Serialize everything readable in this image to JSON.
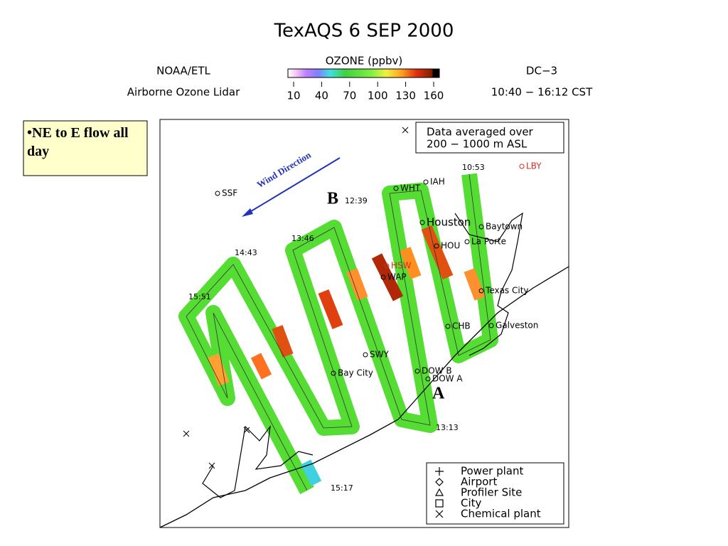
{
  "title": "TexAQS   6 SEP 2000",
  "header": {
    "left": [
      "NOAA/ETL",
      "Airborne Ozone Lidar"
    ],
    "colorbar": {
      "title": "OZONE (ppbv)",
      "ticks": [
        10,
        40,
        70,
        100,
        130,
        160
      ]
    },
    "right": [
      "DC−3",
      "10:40 − 16:12 CST"
    ]
  },
  "note": "•NE to E flow all day",
  "map": {
    "averaging_note": [
      "Data averaged over",
      "200 − 1000 m ASL"
    ],
    "wind_label": "Wind Direction",
    "points": [
      "A",
      "B"
    ],
    "times": [
      "10:53",
      "12:39",
      "13:46",
      "14:43",
      "15:51",
      "13:13",
      "15:17"
    ],
    "places": [
      "SSF",
      "WHT",
      "IAH",
      "LBY",
      "Houston",
      "Baytown",
      "HOU",
      "La Porte",
      "HSW",
      "WAP",
      "Texas City",
      "CHB",
      "Galveston",
      "SWY",
      "Bay City",
      "DOW B",
      "DOW A"
    ],
    "legend": [
      "Power plant",
      "Airport",
      "Profiler Site",
      "City",
      "Chemical plant"
    ]
  }
}
